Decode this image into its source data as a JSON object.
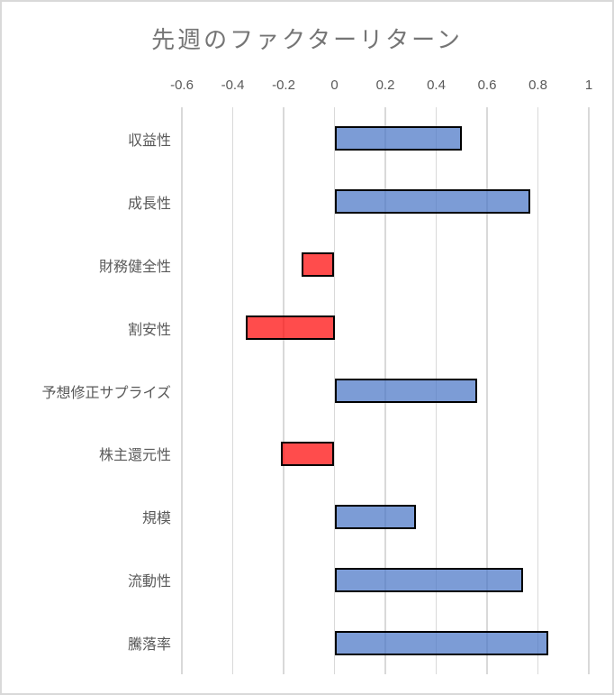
{
  "chart_data": {
    "type": "bar",
    "orientation": "horizontal",
    "title": "先週のファクターリターン",
    "categories": [
      "収益性",
      "成長性",
      "財務健全性",
      "割安性",
      "予想修正サプライズ",
      "株主還元性",
      "規模",
      "流動性",
      "騰落率"
    ],
    "values": [
      0.5,
      0.77,
      -0.13,
      -0.35,
      0.56,
      -0.21,
      0.32,
      0.74,
      0.84
    ],
    "xlim": [
      -0.6,
      1.0
    ],
    "x_ticks": [
      -0.6,
      -0.4,
      -0.2,
      0,
      0.2,
      0.4,
      0.6,
      0.8,
      1
    ],
    "x_tick_labels": [
      "-0.6",
      "-0.4",
      "-0.2",
      "0",
      "0.2",
      "0.4",
      "0.6",
      "0.8",
      "1"
    ],
    "xlabel": "",
    "ylabel": "",
    "axis_position": "top",
    "grid": "vertical",
    "legend": "none",
    "colors": {
      "positive_fill": "#4472C4",
      "negative_fill": "#FF0000",
      "fill_opacity": 0.7,
      "bar_border": "#000000",
      "gridline": "#D9D9D9",
      "tick_label_color": "#595959",
      "category_label_color": "#595959",
      "title_color": "#757575",
      "frame_border": "#D9D9D9",
      "background": "#FFFFFF"
    }
  }
}
